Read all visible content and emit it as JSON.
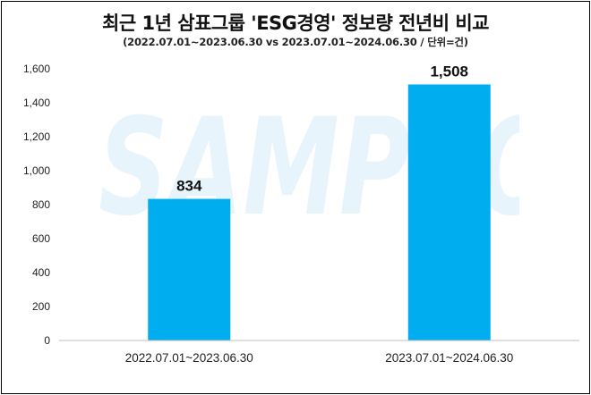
{
  "header": {
    "title": "최근 1년 삼표그룹 'ESG경영' 정보량 전년비 비교",
    "subtitle": "(2022.07.01~2023.06.30 vs 2023.07.01~2024.06.30 / 단위=건)"
  },
  "watermark": {
    "text": "SAMPYO"
  },
  "colors": {
    "bar": "#00AEEF",
    "axis": "#BFBFBF",
    "text": "#222222"
  },
  "chart_data": {
    "type": "bar",
    "title": "최근 1년 삼표그룹 'ESG경영' 정보량 전년비 비교",
    "subtitle": "(2022.07.01~2023.06.30 vs 2023.07.01~2024.06.30 / 단위=건)",
    "categories": [
      "2022.07.01~2023.06.30",
      "2023.07.01~2024.06.30"
    ],
    "values": [
      834,
      1508
    ],
    "value_labels": [
      "834",
      "1,508"
    ],
    "ylim": [
      0,
      1600
    ],
    "yticks": [
      0,
      200,
      400,
      600,
      800,
      1000,
      1200,
      1400,
      1600
    ],
    "ytick_labels": [
      "0",
      "200",
      "400",
      "600",
      "800",
      "1,000",
      "1,200",
      "1,400",
      "1,600"
    ],
    "xlabel": "",
    "ylabel": "",
    "grid": false,
    "legend": "none"
  }
}
